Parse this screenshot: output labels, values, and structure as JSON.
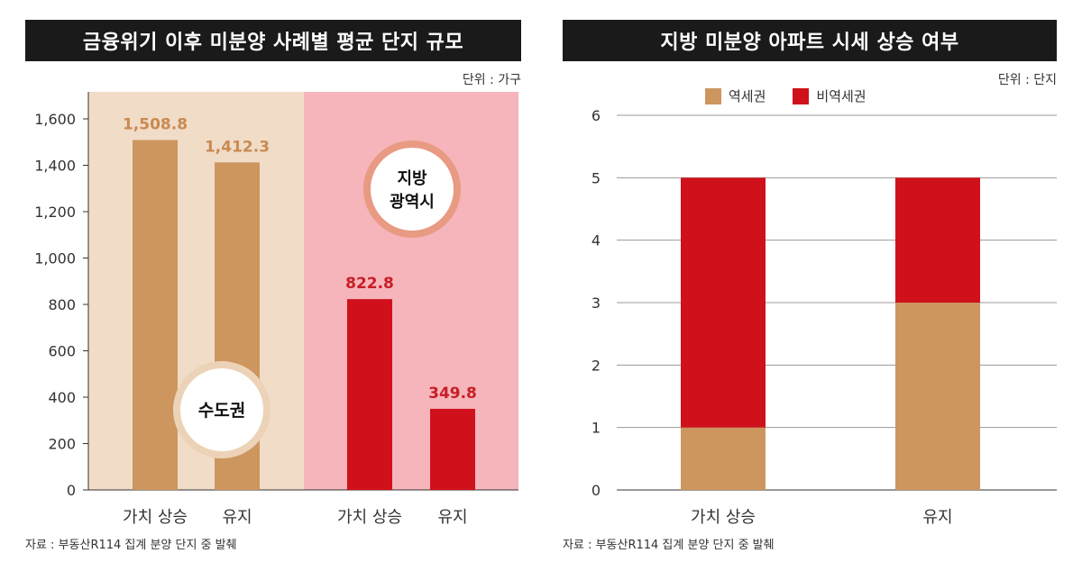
{
  "colors": {
    "capital_bg": "#f1dcc8",
    "regional_bg": "#f5b5bb",
    "tan": "#cd965f",
    "red": "#d0111b",
    "tan_label": "#c98a52",
    "red_label": "#c81e25",
    "badge_ring_tan": "#ecd3b8",
    "badge_ring_red": "#e89a82"
  },
  "left": {
    "title": "금융위기 이후 미분양 사례별 평균 단지 규모",
    "unit": "단위 : 가구",
    "source": "자료 : 부동산R114 집계 분양 단지 중 발췌",
    "badges": {
      "capital": "수도권",
      "regional_line1": "지방",
      "regional_line2": "광역시"
    }
  },
  "right": {
    "title": "지방 미분양 아파트 시세 상승 여부",
    "unit": "단위 : 단지",
    "source": "자료 : 부동산R114 집계 분양 단지 중 발췌",
    "legend": [
      "역세권",
      "비역세권"
    ]
  },
  "chart_data": [
    {
      "type": "bar",
      "title": "금융위기 이후 미분양 사례별 평균 단지 규모",
      "unit": "단위 : 가구",
      "groups": [
        "수도권",
        "지방 광역시"
      ],
      "categories": [
        "가치 상승",
        "유지",
        "가치 상승",
        "유지"
      ],
      "values": [
        1508.8,
        1412.3,
        822.8,
        349.8
      ],
      "value_labels": [
        "1,508.8",
        "1,412.3",
        "822.8",
        "349.8"
      ],
      "yticks": [
        "0",
        "200",
        "400",
        "600",
        "800",
        "1,000",
        "1,200",
        "1,400",
        "1,600"
      ],
      "ylim": [
        0,
        1600
      ],
      "grid": false
    },
    {
      "type": "bar",
      "stacked": true,
      "title": "지방 미분양 아파트 시세 상승 여부",
      "unit": "단위 : 단지",
      "categories": [
        "가치 상승",
        "유지"
      ],
      "series": [
        {
          "name": "역세권",
          "values": [
            1,
            3
          ]
        },
        {
          "name": "비역세권",
          "values": [
            4,
            2
          ]
        }
      ],
      "yticks": [
        "0",
        "1",
        "2",
        "3",
        "4",
        "5",
        "6"
      ],
      "ylim": [
        0,
        6
      ],
      "grid": true,
      "legend": "top"
    }
  ]
}
